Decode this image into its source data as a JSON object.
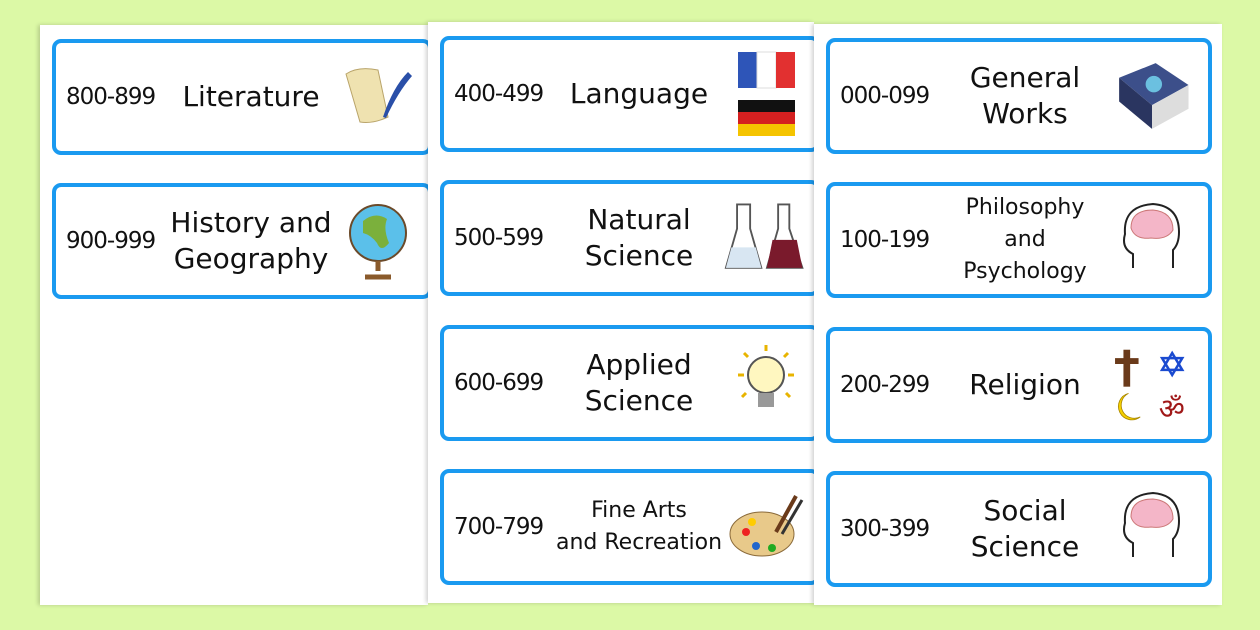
{
  "colors": {
    "background": "#dcf9a6",
    "card_border": "#1a9af0"
  },
  "columns": [
    {
      "cards": [
        {
          "range": "800-899",
          "lines": [
            "Literature"
          ],
          "icon": "scroll-quill-icon"
        },
        {
          "range": "900-999",
          "lines": [
            "History and",
            "Geography"
          ],
          "icon": "globe-icon"
        }
      ]
    },
    {
      "cards": [
        {
          "range": "400-499",
          "lines": [
            "Language"
          ],
          "icon": "flags-icon"
        },
        {
          "range": "500-599",
          "lines": [
            "Natural",
            "Science"
          ],
          "icon": "flasks-icon"
        },
        {
          "range": "600-699",
          "lines": [
            "Applied",
            "Science"
          ],
          "icon": "lightbulb-icon"
        },
        {
          "range": "700-799",
          "lines": [
            "Fine Arts",
            "and Recreation"
          ],
          "icon": "palette-icon"
        }
      ]
    },
    {
      "cards": [
        {
          "range": "000-099",
          "lines": [
            "General",
            "Works"
          ],
          "icon": "atlas-book-icon"
        },
        {
          "range": "100-199",
          "lines": [
            "Philosophy",
            "and Psychology"
          ],
          "icon": "brain-head-icon"
        },
        {
          "range": "200-299",
          "lines": [
            "Religion"
          ],
          "icon": "religious-symbols-icon"
        },
        {
          "range": "300-399",
          "lines": [
            "Social",
            "Science"
          ],
          "icon": "brain-head-icon"
        }
      ]
    }
  ]
}
